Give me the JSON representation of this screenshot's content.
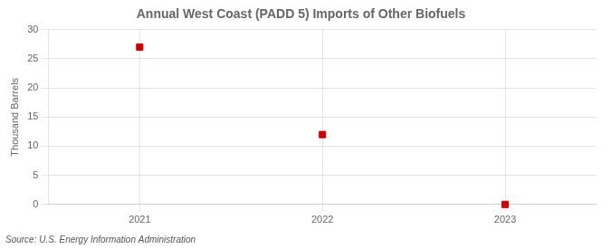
{
  "chart_data": {
    "type": "scatter",
    "title": "Annual West Coast (PADD 5) Imports of Other Biofuels",
    "ylabel": "Thousand Barrels",
    "source": "Source: U.S. Energy Information Administration",
    "x": [
      2021,
      2022,
      2023
    ],
    "values": [
      27,
      12,
      0
    ],
    "color": "#cc0000",
    "marker": "square",
    "xlim": [
      2020.5,
      2023.5
    ],
    "xticks": [
      2021,
      2022,
      2023
    ],
    "ylim": [
      0,
      30
    ],
    "yticks": [
      0,
      5,
      10,
      15,
      20,
      25,
      30
    ],
    "grid": true
  }
}
